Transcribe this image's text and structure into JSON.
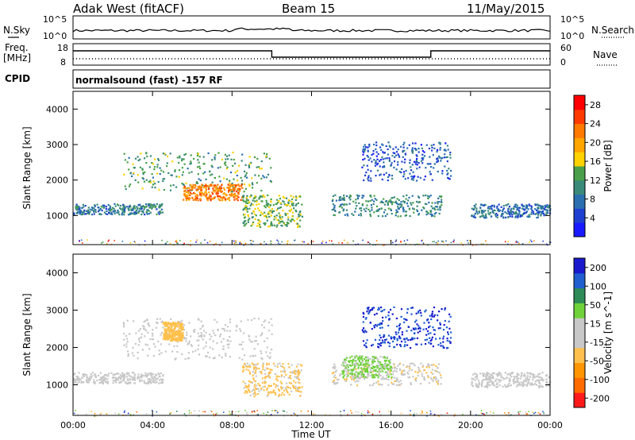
{
  "header": {
    "title": "Adak West (fitACF)",
    "beam": "Beam 15",
    "date": "11/May/2015"
  },
  "top_panels": {
    "nsky_label": "N.Sky",
    "nsearch_label": "N.Search",
    "freq_label_1": "Freq.",
    "freq_label_2": "[MHz]",
    "nave_label": "Nave",
    "cpid_label": "CPID",
    "cpid_text": "normalsound (fast) -157 RF",
    "noise_ticks_left": [
      "10^5",
      "10^0"
    ],
    "noise_ticks_right": [
      "10^5",
      "10^0"
    ],
    "freq_ticks": [
      "18",
      "8"
    ],
    "nave_ticks": [
      "60",
      "0"
    ]
  },
  "colors": {
    "power_scale": [
      "#1a1aff",
      "#1f3fd0",
      "#2a6fb0",
      "#3a8a7a",
      "#4aa04a",
      "#ffd200",
      "#ffa500",
      "#ff7a00",
      "#ff3a00",
      "#ff0000"
    ],
    "velocity_scale": [
      "#ff1a1a",
      "#ff6a00",
      "#ff9500",
      "#ffc04d",
      "#c8c8c8",
      "#c8c8c8",
      "#6fd23a",
      "#2e8b57",
      "#1f5fcf",
      "#1a1acc"
    ],
    "axes": "#000000"
  },
  "chart_data": [
    {
      "type": "heatmap",
      "title": "",
      "xlabel": "Time UT",
      "ylabel": "Slant Range [km]",
      "xlim": [
        "00:00",
        "00:00"
      ],
      "ylim": [
        180,
        4500
      ],
      "x_ticks": [
        "00:00",
        "04:00",
        "08:00",
        "12:00",
        "16:00",
        "20:00",
        "00:00"
      ],
      "y_ticks": [
        1000,
        2000,
        3000,
        4000
      ],
      "colorbar": {
        "label": "Power [dB]",
        "ticks": [
          4,
          8,
          12,
          16,
          20,
          24,
          28
        ],
        "range": [
          0,
          30
        ]
      },
      "regions": [
        {
          "hours": [
            0.0,
            4.5
          ],
          "range_km": [
            1050,
            1350
          ],
          "value": 9
        },
        {
          "hours": [
            2.5,
            10.0
          ],
          "range_km": [
            1700,
            2800
          ],
          "value": 12
        },
        {
          "hours": [
            5.5,
            8.5
          ],
          "range_km": [
            1450,
            1900
          ],
          "value": 22
        },
        {
          "hours": [
            8.5,
            11.5
          ],
          "range_km": [
            700,
            1600
          ],
          "value": 14
        },
        {
          "hours": [
            13.0,
            18.5
          ],
          "range_km": [
            1000,
            1600
          ],
          "value": 10
        },
        {
          "hours": [
            14.5,
            19.0
          ],
          "range_km": [
            2000,
            3100
          ],
          "value": 6
        },
        {
          "hours": [
            20.0,
            24.0
          ],
          "range_km": [
            950,
            1350
          ],
          "value": 8
        }
      ]
    },
    {
      "type": "heatmap",
      "title": "",
      "xlabel": "Time UT",
      "ylabel": "Slant Range [km]",
      "xlim": [
        "00:00",
        "00:00"
      ],
      "ylim": [
        180,
        4500
      ],
      "x_ticks": [
        "00:00",
        "04:00",
        "08:00",
        "12:00",
        "16:00",
        "20:00",
        "00:00"
      ],
      "y_ticks": [
        1000,
        2000,
        3000,
        4000
      ],
      "colorbar": {
        "label": "Velocity [m s^-1]",
        "ticks": [
          200,
          100,
          50,
          15,
          -15,
          -50,
          -100,
          -200
        ],
        "range": [
          -250,
          250
        ]
      },
      "regions": [
        {
          "hours": [
            0.0,
            4.5
          ],
          "range_km": [
            1050,
            1350
          ],
          "value": 0
        },
        {
          "hours": [
            2.5,
            10.0
          ],
          "range_km": [
            1700,
            2800
          ],
          "value": 0
        },
        {
          "hours": [
            4.5,
            5.5
          ],
          "range_km": [
            2200,
            2700
          ],
          "value": -80
        },
        {
          "hours": [
            8.5,
            11.5
          ],
          "range_km": [
            700,
            1600
          ],
          "value": -60
        },
        {
          "hours": [
            13.0,
            18.5
          ],
          "range_km": [
            1000,
            1600
          ],
          "value": -40
        },
        {
          "hours": [
            13.5,
            16.0
          ],
          "range_km": [
            1200,
            1800
          ],
          "value": 60
        },
        {
          "hours": [
            14.5,
            19.0
          ],
          "range_km": [
            2000,
            3100
          ],
          "value": 200
        },
        {
          "hours": [
            20.0,
            24.0
          ],
          "range_km": [
            950,
            1350
          ],
          "value": 0
        }
      ]
    }
  ]
}
